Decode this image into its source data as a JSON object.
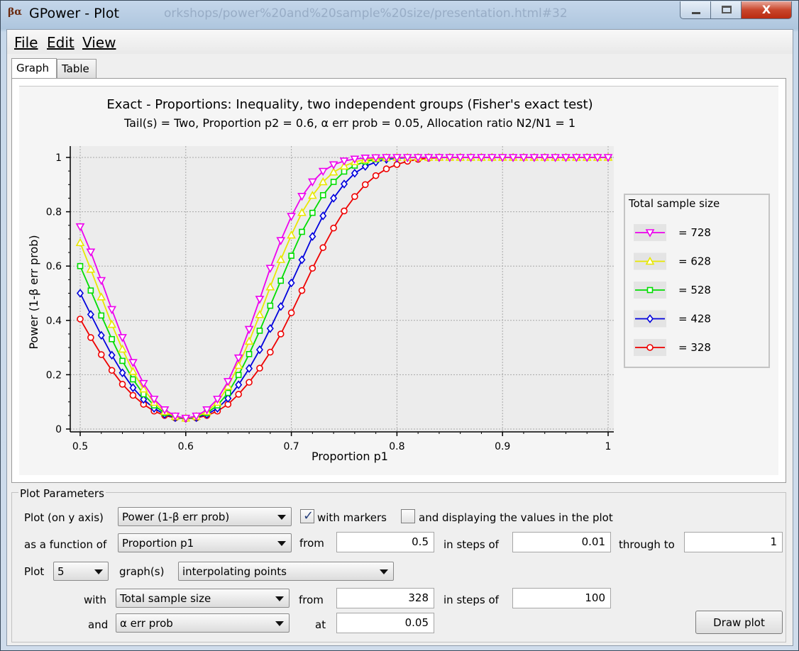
{
  "window": {
    "title": "GPower - Plot",
    "background_url_fragment": "orkshops/power%20and%20sample%20size/presentation.html#32",
    "close_glyph": "X"
  },
  "menu": {
    "file": "File",
    "edit": "Edit",
    "view": "View"
  },
  "tabs": [
    {
      "label": "Graph",
      "active": true
    },
    {
      "label": "Table",
      "active": false
    }
  ],
  "chart_data": {
    "type": "line",
    "title": "Exact - Proportions: Inequality, two independent groups (Fisher's exact test)",
    "subtitle": "Tail(s) = Two, Proportion p2 = 0.6, α err prob = 0.05, Allocation ratio N2/N1 = 1",
    "xlabel": "Proportion p1",
    "ylabel": "Power (1-β err prob)",
    "xlim": [
      0.5,
      1
    ],
    "ylim": [
      0,
      1
    ],
    "xticks": [
      "0.5",
      "0.6",
      "0.7",
      "0.8",
      "0.9",
      "1"
    ],
    "yticks": [
      "0",
      "0.2",
      "0.4",
      "0.6",
      "0.8",
      "1"
    ],
    "grid": true,
    "legend_title": "Total sample size",
    "legend_placement": "right",
    "x": [
      0.5,
      0.51,
      0.52,
      0.53,
      0.54,
      0.55,
      0.56,
      0.57,
      0.58,
      0.59,
      0.6,
      0.61,
      0.62,
      0.63,
      0.64,
      0.65,
      0.66,
      0.67,
      0.68,
      0.69,
      0.7,
      0.71,
      0.72,
      0.73,
      0.74,
      0.75,
      0.76,
      0.77,
      0.78,
      0.79,
      0.8,
      0.81,
      0.82,
      0.83,
      0.84,
      0.85,
      0.86,
      0.87,
      0.88,
      0.89,
      0.9,
      0.91,
      0.92,
      0.93,
      0.94,
      0.95,
      0.96,
      0.97,
      0.98,
      0.99,
      1
    ],
    "series": [
      {
        "name": "= 728",
        "color": "#ee00ee",
        "marker": "triangle-down",
        "values": [
          0.745,
          0.652,
          0.547,
          0.44,
          0.337,
          0.245,
          0.168,
          0.11,
          0.071,
          0.048,
          0.04,
          0.048,
          0.071,
          0.11,
          0.175,
          0.262,
          0.367,
          0.478,
          0.592,
          0.694,
          0.783,
          0.857,
          0.91,
          0.949,
          0.973,
          0.987,
          0.994,
          0.998,
          0.999,
          1,
          1,
          1,
          1,
          1,
          1,
          1,
          1,
          1,
          1,
          1,
          1,
          1,
          1,
          1,
          1,
          1,
          1,
          1,
          1,
          1,
          1
        ]
      },
      {
        "name": "= 628",
        "color": "#e8e800",
        "marker": "triangle-up",
        "values": [
          0.686,
          0.588,
          0.486,
          0.385,
          0.294,
          0.212,
          0.147,
          0.098,
          0.064,
          0.046,
          0.04,
          0.046,
          0.064,
          0.098,
          0.157,
          0.234,
          0.323,
          0.421,
          0.523,
          0.624,
          0.714,
          0.797,
          0.86,
          0.91,
          0.946,
          0.968,
          0.984,
          0.992,
          0.997,
          0.999,
          1,
          1,
          1,
          1,
          1,
          1,
          1,
          1,
          1,
          1,
          1,
          1,
          1,
          1,
          1,
          1,
          1,
          1,
          1,
          1,
          1
        ]
      },
      {
        "name": "= 528",
        "color": "#00dd00",
        "marker": "square",
        "values": [
          0.6,
          0.51,
          0.418,
          0.331,
          0.251,
          0.183,
          0.128,
          0.087,
          0.059,
          0.044,
          0.039,
          0.044,
          0.059,
          0.087,
          0.133,
          0.199,
          0.276,
          0.362,
          0.454,
          0.546,
          0.638,
          0.726,
          0.796,
          0.861,
          0.91,
          0.948,
          0.97,
          0.985,
          0.993,
          0.997,
          0.999,
          1,
          1,
          1,
          1,
          1,
          1,
          1,
          1,
          1,
          1,
          1,
          1,
          1,
          1,
          1,
          1,
          1,
          1,
          1,
          1
        ]
      },
      {
        "name": "= 428",
        "color": "#0000dd",
        "marker": "diamond",
        "values": [
          0.5,
          0.422,
          0.345,
          0.272,
          0.207,
          0.152,
          0.109,
          0.076,
          0.054,
          0.042,
          0.039,
          0.042,
          0.054,
          0.076,
          0.113,
          0.163,
          0.223,
          0.292,
          0.37,
          0.451,
          0.538,
          0.623,
          0.709,
          0.785,
          0.85,
          0.902,
          0.942,
          0.967,
          0.983,
          0.993,
          0.997,
          0.999,
          1,
          1,
          1,
          1,
          1,
          1,
          1,
          1,
          1,
          1,
          1,
          1,
          1,
          1,
          1,
          1,
          1,
          1,
          1
        ]
      },
      {
        "name": "= 328",
        "color": "#ee0000",
        "marker": "circle",
        "values": [
          0.405,
          0.337,
          0.274,
          0.216,
          0.165,
          0.124,
          0.091,
          0.066,
          0.05,
          0.041,
          0.038,
          0.041,
          0.05,
          0.066,
          0.091,
          0.128,
          0.172,
          0.224,
          0.283,
          0.35,
          0.428,
          0.51,
          0.592,
          0.668,
          0.74,
          0.803,
          0.856,
          0.9,
          0.933,
          0.958,
          0.974,
          0.986,
          0.993,
          0.997,
          0.999,
          1,
          1,
          1,
          1,
          1,
          1,
          1,
          1,
          1,
          1,
          1,
          1,
          1,
          1,
          1,
          1
        ]
      }
    ]
  },
  "params": {
    "title": "Plot Parameters",
    "plot_on_y_label": "Plot (on y axis)",
    "y_axis_select": "Power (1-β err prob)",
    "with_markers_label": "with markers",
    "with_markers_checked": true,
    "display_values_label": "and displaying the values in the plot",
    "display_values_checked": false,
    "function_of_label": "as a function of",
    "x_axis_select": "Proportion p1",
    "from_label": "from",
    "x_from": "0.5",
    "steps_label": "in steps of",
    "x_step": "0.01",
    "through_label": "through to",
    "x_to": "1",
    "plot_label": "Plot",
    "num_graphs": "5",
    "graphs_label": "graph(s)",
    "graph_mode": "interpolating points",
    "with_label": "with",
    "series_param_select": "Total sample size",
    "series_from_label": "from",
    "series_from": "328",
    "series_steps_label": "in steps of",
    "series_step": "100",
    "and_label": "and",
    "fixed_param_select": "α err prob",
    "at_label": "at",
    "fixed_value": "0.05",
    "draw_button": "Draw plot"
  }
}
